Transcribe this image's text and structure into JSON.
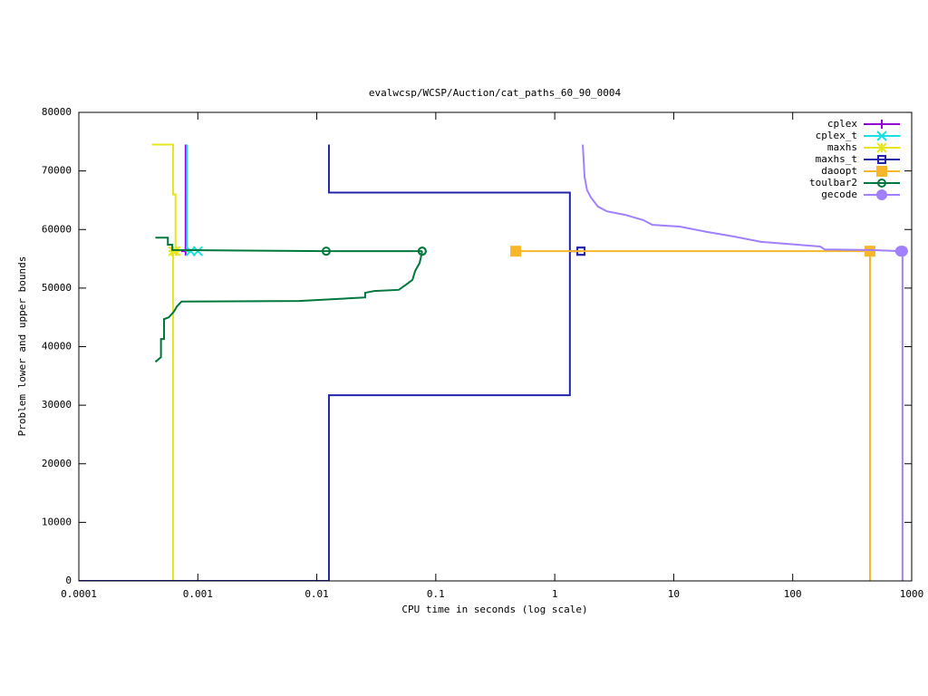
{
  "chart_data": {
    "type": "line",
    "title": "evalwcsp/WCSP/Auction/cat_paths_60_90_0004",
    "x_label": "CPU time in seconds (log scale)",
    "y_label": "Problem lower and upper bounds",
    "x_scale": "log",
    "xlim": [
      0.0001,
      1000
    ],
    "xticks": [
      0.0001,
      0.001,
      0.01,
      0.1,
      1,
      10,
      100,
      1000
    ],
    "ylim": [
      0,
      80000
    ],
    "yticks": [
      0,
      10000,
      20000,
      30000,
      40000,
      50000,
      60000,
      70000,
      80000
    ],
    "legend": "top-right",
    "series": [
      {
        "name": "cplex",
        "color": "#9400d3",
        "marker": "plus",
        "x": [
          0.00079,
          0.00079
        ],
        "values": [
          74500,
          56300
        ]
      },
      {
        "name": "cplex_t",
        "color": "#19e0e0",
        "marker": "cross",
        "x": [
          0.00081,
          0.00081,
          0.00087,
          null,
          0.001
        ],
        "values": [
          74500,
          56300,
          56300,
          null,
          56300
        ]
      },
      {
        "name": "maxhs",
        "color": "#e6e61e",
        "marker": "star",
        "x": [
          0.00041,
          0.00062,
          0.00062,
          0.00065,
          0.00065,
          null,
          0.00062,
          0.00062
        ],
        "values": [
          74500,
          74500,
          66000,
          66000,
          56300,
          null,
          0,
          56300
        ]
      },
      {
        "name": "maxhs_t",
        "color": "#2424aa",
        "marker": "square-open",
        "x": [
          0.01265,
          0.01265,
          1.34,
          1.34,
          1.66,
          null,
          0.0001,
          0.01265,
          0.01265,
          1.34,
          1.34,
          1.66
        ],
        "values": [
          74500,
          66300,
          66300,
          56300,
          56300,
          null,
          0,
          0,
          31700,
          31700,
          56300,
          56300
        ]
      },
      {
        "name": "daoopt",
        "color": "#f8b62a",
        "marker": "square",
        "x": [
          446,
          446,
          null,
          446,
          0.47
        ],
        "values": [
          0,
          56300,
          null,
          56300,
          56300
        ]
      },
      {
        "name": "toulbar2",
        "color": "#00773c",
        "marker": "circle-open",
        "x": [
          0.00044,
          0.00056,
          0.00056,
          0.00061,
          0.00061,
          0.012,
          null,
          0.012,
          0.0769,
          null,
          0.00044,
          0.00049,
          0.00049,
          0.00052,
          0.00052,
          0.00057,
          0.00063,
          0.00067,
          0.00073,
          0.0071,
          0.0255,
          0.0255,
          0.0304,
          0.0489,
          0.0582,
          0.0637,
          0.067,
          0.0732,
          0.0769
        ],
        "values": [
          58600,
          58600,
          57400,
          57400,
          56500,
          56300,
          null,
          56300,
          56300,
          null,
          37400,
          38200,
          41300,
          41300,
          44700,
          45000,
          46000,
          46900,
          47700,
          47800,
          48400,
          49200,
          49500,
          49700,
          50800,
          51400,
          52900,
          54300,
          56300
        ]
      },
      {
        "name": "gecode",
        "color": "#a080ff",
        "marker": "circle",
        "x": [
          1.72,
          1.78,
          1.87,
          2.01,
          2.31,
          2.75,
          3.91,
          5.56,
          6.62,
          11.2,
          19,
          32.1,
          54.3,
          110,
          170,
          186,
          446,
          809,
          null,
          837,
          837
        ],
        "values": [
          74500,
          69000,
          66700,
          65500,
          63900,
          63100,
          62500,
          61600,
          60800,
          60500,
          59600,
          58800,
          57900,
          57400,
          57100,
          56600,
          56500,
          56300,
          null,
          0,
          56300
        ]
      }
    ]
  }
}
